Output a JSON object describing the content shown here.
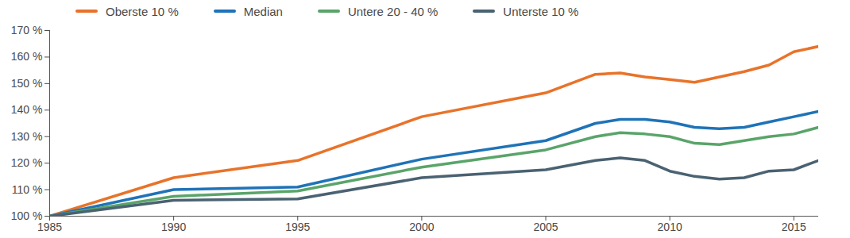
{
  "chart_data": {
    "type": "line",
    "x": [
      1985,
      1990,
      1995,
      2000,
      2005,
      2007,
      2008,
      2009,
      2010,
      2011,
      2012,
      2013,
      2014,
      2015,
      2016
    ],
    "series": [
      {
        "name": "Oberste 10 %",
        "color": "#e8732a",
        "values": [
          100,
          114.5,
          121,
          137.5,
          146.5,
          153.5,
          154,
          152.5,
          151.5,
          150.5,
          152.5,
          154.5,
          157,
          162,
          164
        ]
      },
      {
        "name": "Median",
        "color": "#1f73b7",
        "values": [
          100,
          110,
          111,
          121.5,
          128.5,
          135,
          136.5,
          136.5,
          135.5,
          133.5,
          133,
          133.5,
          135.5,
          137.5,
          139.5
        ]
      },
      {
        "name": "Untere 20 - 40 %",
        "color": "#5aa46a",
        "values": [
          100,
          107.5,
          109.5,
          118.5,
          125,
          130,
          131.5,
          131,
          130,
          127.5,
          127,
          128.5,
          130,
          131,
          133.5
        ]
      },
      {
        "name": "Unterste 10 %",
        "color": "#4a6272",
        "values": [
          100,
          106,
          106.5,
          114.5,
          117.5,
          121,
          122,
          121,
          117,
          115,
          114,
          114.5,
          117,
          117.5,
          121
        ]
      }
    ],
    "xlim": [
      1985,
      2016
    ],
    "xticks": [
      1985,
      1990,
      1995,
      2000,
      2005,
      2010,
      2015
    ],
    "ylim": [
      100,
      170
    ],
    "yticks": [
      {
        "value": 100,
        "label": "100 %"
      },
      {
        "value": 110,
        "label": "110 %"
      },
      {
        "value": 120,
        "label": "120 %"
      },
      {
        "value": 130,
        "label": "130 %"
      },
      {
        "value": 140,
        "label": "140 %"
      },
      {
        "value": 150,
        "label": "150 %"
      },
      {
        "value": 160,
        "label": "160 %"
      },
      {
        "value": 170,
        "label": "170 %"
      }
    ],
    "grid": false,
    "legend": "top"
  }
}
